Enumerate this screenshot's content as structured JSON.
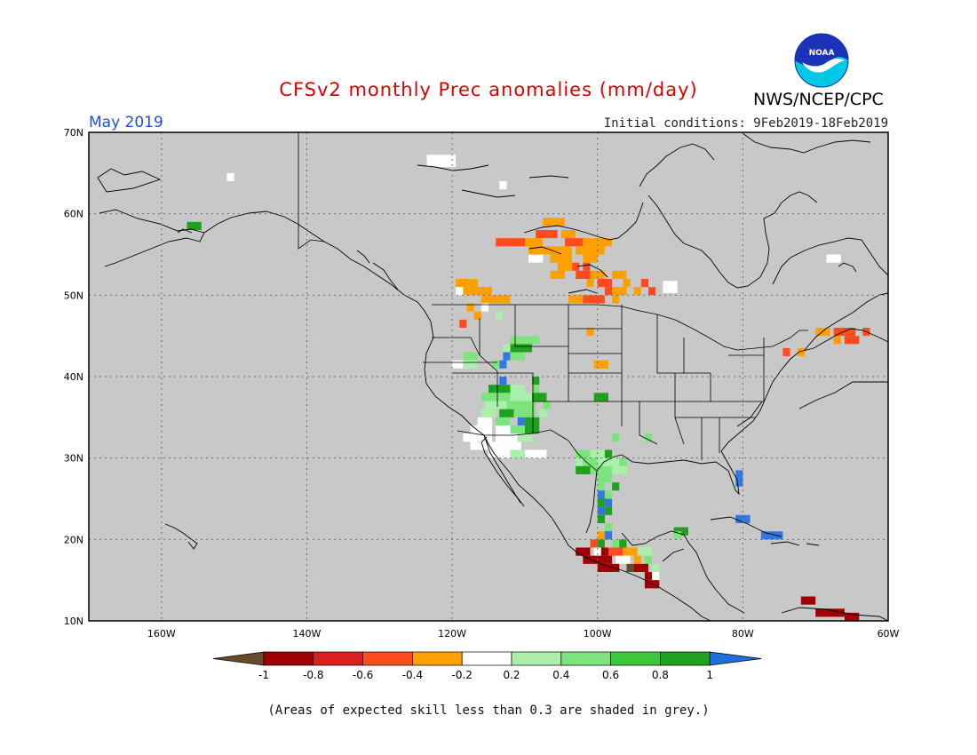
{
  "title": "CFSv2 monthly Prec anomalies (mm/day)",
  "valid_month": "May 2019",
  "initial_conditions": "Initial conditions: 9Feb2019-18Feb2019",
  "agency": "NWS/NCEP/CPC",
  "logo_text": "NOAA",
  "footnote": "(Areas of expected skill less than 0.3 are shaded in grey.)",
  "colors": {
    "title": "#dd0000",
    "month": "#1e50dd",
    "ocean_land_grey": "#c8c8c8",
    "grid": "#6f6f6f"
  },
  "map": {
    "lon_range": [
      -170,
      -60
    ],
    "lat_range": [
      10,
      70
    ],
    "lat_ticks": [
      "70N",
      "60N",
      "50N",
      "40N",
      "30N",
      "20N",
      "10N"
    ],
    "lon_ticks": [
      "160W",
      "140W",
      "120W",
      "100W",
      "80W",
      "60W"
    ],
    "cells": [
      {
        "lon": -155.5,
        "lat": 58.5,
        "w": 2,
        "h": 1,
        "c": "#1fa01f"
      },
      {
        "lon": -150.5,
        "lat": 64.5,
        "w": 1,
        "h": 1,
        "c": "#ffffff"
      },
      {
        "lon": -121.5,
        "lat": 66.5,
        "w": 4,
        "h": 1.5,
        "c": "#ffffff"
      },
      {
        "lon": -113.0,
        "lat": 63.5,
        "w": 1,
        "h": 1,
        "c": "#ffffff"
      },
      {
        "lon": -106.0,
        "lat": 59.0,
        "w": 3,
        "h": 1,
        "c": "#ffa000"
      },
      {
        "lon": -107.0,
        "lat": 57.5,
        "w": 3,
        "h": 1,
        "c": "#ff4b1e"
      },
      {
        "lon": -104.0,
        "lat": 57.5,
        "w": 2,
        "h": 1,
        "c": "#ffa000"
      },
      {
        "lon": -109.0,
        "lat": 56.5,
        "w": 3,
        "h": 1,
        "c": "#ffa000"
      },
      {
        "lon": -112.0,
        "lat": 56.5,
        "w": 4,
        "h": 1,
        "c": "#ff4b1e"
      },
      {
        "lon": -103.0,
        "lat": 56.5,
        "w": 3,
        "h": 1,
        "c": "#ff4b1e"
      },
      {
        "lon": -100.0,
        "lat": 56.5,
        "w": 4,
        "h": 1,
        "c": "#ffa000"
      },
      {
        "lon": -108.0,
        "lat": 55.5,
        "w": 3,
        "h": 1,
        "c": "#ffa000"
      },
      {
        "lon": -105.0,
        "lat": 55.5,
        "w": 3,
        "h": 1,
        "c": "#ffa000"
      },
      {
        "lon": -101.0,
        "lat": 55.5,
        "w": 4,
        "h": 1,
        "c": "#ffa000"
      },
      {
        "lon": -108.5,
        "lat": 54.5,
        "w": 2,
        "h": 1,
        "c": "#ffffff"
      },
      {
        "lon": -105.0,
        "lat": 54.5,
        "w": 3,
        "h": 1,
        "c": "#ffa000"
      },
      {
        "lon": -101.0,
        "lat": 54.5,
        "w": 2,
        "h": 1,
        "c": "#ffa000"
      },
      {
        "lon": -103.0,
        "lat": 53.5,
        "w": 1,
        "h": 1,
        "c": "#ff4b1e"
      },
      {
        "lon": -104.5,
        "lat": 53.5,
        "w": 2,
        "h": 1,
        "c": "#ffa000"
      },
      {
        "lon": -101.5,
        "lat": 53.5,
        "w": 1,
        "h": 1,
        "c": "#ff4b1e"
      },
      {
        "lon": -105.5,
        "lat": 52.5,
        "w": 2,
        "h": 1,
        "c": "#ffa000"
      },
      {
        "lon": -102.0,
        "lat": 52.5,
        "w": 2,
        "h": 1,
        "c": "#ff4b1e"
      },
      {
        "lon": -100.0,
        "lat": 52.5,
        "w": 2,
        "h": 1,
        "c": "#ffa000"
      },
      {
        "lon": -97.0,
        "lat": 52.5,
        "w": 2,
        "h": 1,
        "c": "#ffa000"
      },
      {
        "lon": -101.0,
        "lat": 51.5,
        "w": 1,
        "h": 1,
        "c": "#ffa000"
      },
      {
        "lon": -99.0,
        "lat": 51.5,
        "w": 2,
        "h": 1,
        "c": "#ff4b1e"
      },
      {
        "lon": -96.0,
        "lat": 51.5,
        "w": 1,
        "h": 1,
        "c": "#ffa000"
      },
      {
        "lon": -93.5,
        "lat": 51.5,
        "w": 1,
        "h": 1,
        "c": "#ff4b1e"
      },
      {
        "lon": -98.5,
        "lat": 50.5,
        "w": 1,
        "h": 1,
        "c": "#ff4b1e"
      },
      {
        "lon": -97.0,
        "lat": 50.5,
        "w": 2,
        "h": 1,
        "c": "#ffa000"
      },
      {
        "lon": -94.5,
        "lat": 50.5,
        "w": 1,
        "h": 1,
        "c": "#ffa000"
      },
      {
        "lon": -92.5,
        "lat": 50.5,
        "w": 1,
        "h": 1,
        "c": "#ff4b1e"
      },
      {
        "lon": -90.0,
        "lat": 51.0,
        "w": 2,
        "h": 1.5,
        "c": "#ffffff"
      },
      {
        "lon": -103.0,
        "lat": 49.5,
        "w": 2,
        "h": 1,
        "c": "#ffa000"
      },
      {
        "lon": -100.5,
        "lat": 49.5,
        "w": 3,
        "h": 1,
        "c": "#ff4b1e"
      },
      {
        "lon": -97.5,
        "lat": 49.5,
        "w": 1,
        "h": 1,
        "c": "#ffa000"
      },
      {
        "lon": -118.0,
        "lat": 51.5,
        "w": 3,
        "h": 1,
        "c": "#ffa000"
      },
      {
        "lon": -116.5,
        "lat": 50.5,
        "w": 4,
        "h": 1,
        "c": "#ffa000"
      },
      {
        "lon": -119.0,
        "lat": 50.5,
        "w": 1,
        "h": 1,
        "c": "#ffffff"
      },
      {
        "lon": -114.0,
        "lat": 49.5,
        "w": 4,
        "h": 1,
        "c": "#ffa000"
      },
      {
        "lon": -117.5,
        "lat": 48.5,
        "w": 1,
        "h": 1,
        "c": "#ffa000"
      },
      {
        "lon": -115.5,
        "lat": 48.5,
        "w": 1,
        "h": 1,
        "c": "#ffffff"
      },
      {
        "lon": -116.5,
        "lat": 47.5,
        "w": 1,
        "h": 1,
        "c": "#ffa000"
      },
      {
        "lon": -113.5,
        "lat": 47.5,
        "w": 1,
        "h": 1,
        "c": "#aaf0aa"
      },
      {
        "lon": -118.5,
        "lat": 46.5,
        "w": 1,
        "h": 1,
        "c": "#ff4b1e"
      },
      {
        "lon": -101.0,
        "lat": 45.5,
        "w": 1,
        "h": 1,
        "c": "#ffa000"
      },
      {
        "lon": -99.5,
        "lat": 41.5,
        "w": 2,
        "h": 1,
        "c": "#ffa000"
      },
      {
        "lon": -99.5,
        "lat": 37.5,
        "w": 2,
        "h": 1,
        "c": "#1fa01f"
      },
      {
        "lon": -110.0,
        "lat": 44.5,
        "w": 4,
        "h": 1,
        "c": "#7de47d"
      },
      {
        "lon": -110.5,
        "lat": 43.5,
        "w": 3,
        "h": 1,
        "c": "#1fa01f"
      },
      {
        "lon": -112.5,
        "lat": 43.5,
        "w": 1,
        "h": 1,
        "c": "#aaf0aa"
      },
      {
        "lon": -112.5,
        "lat": 42.5,
        "w": 1,
        "h": 1,
        "c": "#3278e0"
      },
      {
        "lon": -111.0,
        "lat": 42.5,
        "w": 2,
        "h": 1,
        "c": "#7de47d"
      },
      {
        "lon": -113.0,
        "lat": 41.5,
        "w": 1,
        "h": 1,
        "c": "#3278e0"
      },
      {
        "lon": -114.0,
        "lat": 41.5,
        "w": 1,
        "h": 1,
        "c": "#7de47d"
      },
      {
        "lon": -117.5,
        "lat": 42.5,
        "w": 2,
        "h": 1,
        "c": "#7de47d"
      },
      {
        "lon": -119.0,
        "lat": 41.5,
        "w": 2,
        "h": 1,
        "c": "#ffffff"
      },
      {
        "lon": -117.5,
        "lat": 41.5,
        "w": 2,
        "h": 1,
        "c": "#aaf0aa"
      },
      {
        "lon": -113.0,
        "lat": 39.5,
        "w": 1,
        "h": 1,
        "c": "#3278e0"
      },
      {
        "lon": -108.5,
        "lat": 39.5,
        "w": 1,
        "h": 1,
        "c": "#1fa01f"
      },
      {
        "lon": -113.5,
        "lat": 38.5,
        "w": 3,
        "h": 1,
        "c": "#1fa01f"
      },
      {
        "lon": -111.0,
        "lat": 38.5,
        "w": 2,
        "h": 1,
        "c": "#aaf0aa"
      },
      {
        "lon": -108.5,
        "lat": 38.5,
        "w": 1,
        "h": 1,
        "c": "#7de47d"
      },
      {
        "lon": -114.0,
        "lat": 37.5,
        "w": 4,
        "h": 1,
        "c": "#7de47d"
      },
      {
        "lon": -110.5,
        "lat": 37.5,
        "w": 3,
        "h": 1,
        "c": "#aaf0aa"
      },
      {
        "lon": -108.0,
        "lat": 37.5,
        "w": 2,
        "h": 1,
        "c": "#1fa01f"
      },
      {
        "lon": -114.0,
        "lat": 36.5,
        "w": 3,
        "h": 1,
        "c": "#aaf0aa"
      },
      {
        "lon": -110.5,
        "lat": 36.5,
        "w": 4,
        "h": 1,
        "c": "#7de47d"
      },
      {
        "lon": -107.0,
        "lat": 36.5,
        "w": 1,
        "h": 1,
        "c": "#7de47d"
      },
      {
        "lon": -115.0,
        "lat": 35.5,
        "w": 2,
        "h": 1,
        "c": "#aaf0aa"
      },
      {
        "lon": -112.5,
        "lat": 35.5,
        "w": 2,
        "h": 1,
        "c": "#1fa01f"
      },
      {
        "lon": -110.0,
        "lat": 35.5,
        "w": 3,
        "h": 1,
        "c": "#7de47d"
      },
      {
        "lon": -107.5,
        "lat": 35.5,
        "w": 1,
        "h": 1,
        "c": "#aaf0aa"
      },
      {
        "lon": -115.5,
        "lat": 34.5,
        "w": 2,
        "h": 1,
        "c": "#ffffff"
      },
      {
        "lon": -113.0,
        "lat": 34.5,
        "w": 2,
        "h": 1,
        "c": "#7de47d"
      },
      {
        "lon": -110.5,
        "lat": 34.5,
        "w": 1,
        "h": 1,
        "c": "#3278e0"
      },
      {
        "lon": -109.0,
        "lat": 34.5,
        "w": 2,
        "h": 1,
        "c": "#1fa01f"
      },
      {
        "lon": -116.0,
        "lat": 33.5,
        "w": 3,
        "h": 1,
        "c": "#ffffff"
      },
      {
        "lon": -113.0,
        "lat": 33.5,
        "w": 2,
        "h": 1,
        "c": "#ffffff"
      },
      {
        "lon": -111.0,
        "lat": 33.5,
        "w": 2,
        "h": 1,
        "c": "#7de47d"
      },
      {
        "lon": -109.0,
        "lat": 33.5,
        "w": 2,
        "h": 1,
        "c": "#1fa01f"
      },
      {
        "lon": -116.5,
        "lat": 32.5,
        "w": 4,
        "h": 1,
        "c": "#ffffff"
      },
      {
        "lon": -112.5,
        "lat": 32.5,
        "w": 3,
        "h": 1,
        "c": "#ffffff"
      },
      {
        "lon": -110.0,
        "lat": 32.5,
        "w": 2,
        "h": 1,
        "c": "#aaf0aa"
      },
      {
        "lon": -115.0,
        "lat": 31.5,
        "w": 5,
        "h": 1,
        "c": "#ffffff"
      },
      {
        "lon": -111.5,
        "lat": 31.5,
        "w": 2,
        "h": 1,
        "c": "#ffffff"
      },
      {
        "lon": -113.0,
        "lat": 30.5,
        "w": 4,
        "h": 1,
        "c": "#ffffff"
      },
      {
        "lon": -111.0,
        "lat": 30.5,
        "w": 2,
        "h": 1,
        "c": "#aaf0aa"
      },
      {
        "lon": -108.5,
        "lat": 30.5,
        "w": 3,
        "h": 1,
        "c": "#ffffff"
      },
      {
        "lon": -97.5,
        "lat": 32.5,
        "w": 1,
        "h": 1,
        "c": "#7de47d"
      },
      {
        "lon": -93.0,
        "lat": 32.5,
        "w": 1,
        "h": 1,
        "c": "#7de47d"
      },
      {
        "lon": -102.0,
        "lat": 30.5,
        "w": 2,
        "h": 1,
        "c": "#7de47d"
      },
      {
        "lon": -100.0,
        "lat": 30.5,
        "w": 2,
        "h": 1,
        "c": "#aaf0aa"
      },
      {
        "lon": -98.5,
        "lat": 30.5,
        "w": 1,
        "h": 1,
        "c": "#1fa01f"
      },
      {
        "lon": -102.5,
        "lat": 29.5,
        "w": 1,
        "h": 1,
        "c": "#aaf0aa"
      },
      {
        "lon": -101.0,
        "lat": 29.5,
        "w": 2,
        "h": 1,
        "c": "#7de47d"
      },
      {
        "lon": -98.5,
        "lat": 29.5,
        "w": 3,
        "h": 1,
        "c": "#aaf0aa"
      },
      {
        "lon": -96.5,
        "lat": 29.5,
        "w": 1,
        "h": 1,
        "c": "#7de47d"
      },
      {
        "lon": -102.0,
        "lat": 28.5,
        "w": 2,
        "h": 1,
        "c": "#1fa01f"
      },
      {
        "lon": -99.5,
        "lat": 28.5,
        "w": 3,
        "h": 1,
        "c": "#7de47d"
      },
      {
        "lon": -97.0,
        "lat": 28.5,
        "w": 2,
        "h": 1,
        "c": "#aaf0aa"
      },
      {
        "lon": -99.0,
        "lat": 27.5,
        "w": 2,
        "h": 1,
        "c": "#7de47d"
      },
      {
        "lon": -97.5,
        "lat": 26.5,
        "w": 1,
        "h": 1,
        "c": "#1fa01f"
      },
      {
        "lon": -99.5,
        "lat": 26.5,
        "w": 1,
        "h": 1,
        "c": "#7de47d"
      },
      {
        "lon": -99.5,
        "lat": 25.5,
        "w": 1,
        "h": 1,
        "c": "#3278e0"
      },
      {
        "lon": -98.5,
        "lat": 25.5,
        "w": 1,
        "h": 1,
        "c": "#7de47d"
      },
      {
        "lon": -99.5,
        "lat": 24.5,
        "w": 1,
        "h": 1,
        "c": "#1fa01f"
      },
      {
        "lon": -98.5,
        "lat": 24.5,
        "w": 1,
        "h": 1,
        "c": "#3278e0"
      },
      {
        "lon": -99.5,
        "lat": 23.5,
        "w": 1,
        "h": 1,
        "c": "#3278e0"
      },
      {
        "lon": -98.5,
        "lat": 23.5,
        "w": 1,
        "h": 1,
        "c": "#1fa01f"
      },
      {
        "lon": -99.5,
        "lat": 22.5,
        "w": 1,
        "h": 1,
        "c": "#1fa01f"
      },
      {
        "lon": -98.5,
        "lat": 21.5,
        "w": 1,
        "h": 1,
        "c": "#7de47d"
      },
      {
        "lon": -99.5,
        "lat": 20.5,
        "w": 1,
        "h": 1,
        "c": "#ffa000"
      },
      {
        "lon": -98.5,
        "lat": 20.5,
        "w": 1,
        "h": 1,
        "c": "#3278e0"
      },
      {
        "lon": -97.5,
        "lat": 19.5,
        "w": 1,
        "h": 1,
        "c": "#7de47d"
      },
      {
        "lon": -96.5,
        "lat": 19.5,
        "w": 1,
        "h": 1,
        "c": "#1fa01f"
      },
      {
        "lon": -100.5,
        "lat": 19.5,
        "w": 1,
        "h": 1,
        "c": "#ff4b1e"
      },
      {
        "lon": -99.5,
        "lat": 19.5,
        "w": 1,
        "h": 1,
        "c": "#1fa01f"
      },
      {
        "lon": -102.0,
        "lat": 18.5,
        "w": 2,
        "h": 1,
        "c": "#a00000"
      },
      {
        "lon": -100.0,
        "lat": 18.5,
        "w": 1,
        "h": 1,
        "c": "#ffffff"
      },
      {
        "lon": -99.0,
        "lat": 18.5,
        "w": 1,
        "h": 1,
        "c": "#a00000"
      },
      {
        "lon": -97.5,
        "lat": 18.5,
        "w": 2,
        "h": 1,
        "c": "#ff4b1e"
      },
      {
        "lon": -95.5,
        "lat": 18.5,
        "w": 2,
        "h": 1,
        "c": "#ffa000"
      },
      {
        "lon": -93.5,
        "lat": 18.5,
        "w": 2,
        "h": 1,
        "c": "#aaf0aa"
      },
      {
        "lon": -101.0,
        "lat": 17.5,
        "w": 2,
        "h": 1,
        "c": "#a00000"
      },
      {
        "lon": -99.0,
        "lat": 17.5,
        "w": 2,
        "h": 1,
        "c": "#a00000"
      },
      {
        "lon": -96.5,
        "lat": 17.5,
        "w": 2,
        "h": 1,
        "c": "#ffffff"
      },
      {
        "lon": -94.5,
        "lat": 17.5,
        "w": 1,
        "h": 1,
        "c": "#ffa000"
      },
      {
        "lon": -93.0,
        "lat": 17.5,
        "w": 1,
        "h": 1,
        "c": "#7de47d"
      },
      {
        "lon": -98.5,
        "lat": 16.5,
        "w": 3,
        "h": 1,
        "c": "#a00000"
      },
      {
        "lon": -95.5,
        "lat": 16.5,
        "w": 1,
        "h": 1,
        "c": "#6a4a2a"
      },
      {
        "lon": -94.0,
        "lat": 16.5,
        "w": 2,
        "h": 1,
        "c": "#a00000"
      },
      {
        "lon": -92.0,
        "lat": 16.5,
        "w": 1,
        "h": 1,
        "c": "#aaf0aa"
      },
      {
        "lon": -93.0,
        "lat": 15.5,
        "w": 1,
        "h": 1,
        "c": "#a00000"
      },
      {
        "lon": -92.0,
        "lat": 15.5,
        "w": 1,
        "h": 1,
        "c": "#ffffff"
      },
      {
        "lon": -92.5,
        "lat": 14.5,
        "w": 2,
        "h": 1,
        "c": "#a00000"
      },
      {
        "lon": -88.5,
        "lat": 21.0,
        "w": 2,
        "h": 1,
        "c": "#1fa01f"
      },
      {
        "lon": -89.0,
        "lat": 20.5,
        "w": 1,
        "h": 1,
        "c": "#7de47d"
      },
      {
        "lon": -80.5,
        "lat": 27.5,
        "w": 1,
        "h": 2,
        "c": "#3278e0"
      },
      {
        "lon": -80.0,
        "lat": 22.5,
        "w": 2,
        "h": 1,
        "c": "#3278e0"
      },
      {
        "lon": -76.0,
        "lat": 20.5,
        "w": 3,
        "h": 1,
        "c": "#3278e0"
      },
      {
        "lon": -69.0,
        "lat": 45.5,
        "w": 2,
        "h": 1,
        "c": "#ffa000"
      },
      {
        "lon": -66.0,
        "lat": 45.5,
        "w": 3,
        "h": 1,
        "c": "#ff4b1e"
      },
      {
        "lon": -65.0,
        "lat": 44.5,
        "w": 2,
        "h": 1,
        "c": "#ff4b1e"
      },
      {
        "lon": -67.0,
        "lat": 44.5,
        "w": 1,
        "h": 1,
        "c": "#ffa000"
      },
      {
        "lon": -63.0,
        "lat": 45.5,
        "w": 1,
        "h": 1,
        "c": "#ff4b1e"
      },
      {
        "lon": -74.0,
        "lat": 43.0,
        "w": 1,
        "h": 1,
        "c": "#ff4b1e"
      },
      {
        "lon": -72.0,
        "lat": 43.0,
        "w": 1,
        "h": 1,
        "c": "#ffa000"
      },
      {
        "lon": -67.5,
        "lat": 54.5,
        "w": 2,
        "h": 1,
        "c": "#ffffff"
      },
      {
        "lon": -71.0,
        "lat": 12.5,
        "w": 2,
        "h": 1,
        "c": "#a00000"
      },
      {
        "lon": -68.0,
        "lat": 11.0,
        "w": 4,
        "h": 1,
        "c": "#a00000"
      },
      {
        "lon": -65.0,
        "lat": 10.5,
        "w": 2,
        "h": 1,
        "c": "#a00000"
      }
    ]
  },
  "legend": {
    "labels": [
      "-1",
      "-0.8",
      "-0.6",
      "-0.4",
      "-0.2",
      "0.2",
      "0.4",
      "0.6",
      "0.8",
      "1"
    ],
    "colors": [
      "#6a4a2a",
      "#a00000",
      "#dc1e1e",
      "#ff4b1e",
      "#ffa000",
      "#ffffff",
      "#aaf0aa",
      "#7de47d",
      "#3cc83c",
      "#1fa01f",
      "#1e6edc"
    ]
  }
}
